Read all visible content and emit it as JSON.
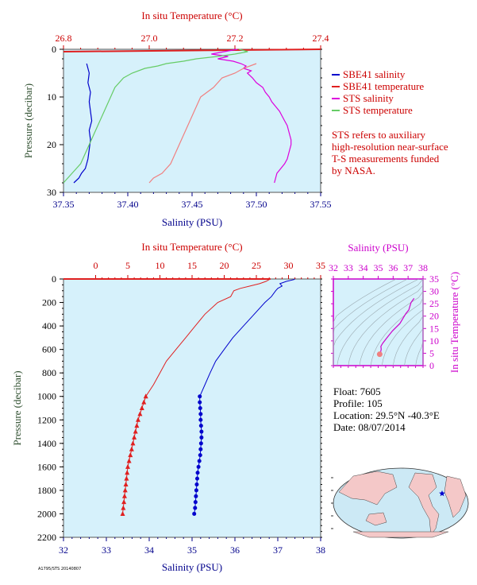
{
  "colors": {
    "plot_bg": "#d6f1fb",
    "salinity_sbe": "#0000cc",
    "temperature_sbe": "#e02020",
    "salinity_sts": "#dd00dd",
    "temperature_sts": "#66cc66",
    "temperature_sts_top": "#f08080",
    "frame_magenta": "#cc00cc"
  },
  "legend": {
    "items": [
      {
        "label": "SBE41 salinity",
        "color": "#0000cc"
      },
      {
        "label": "SBE41 temperature",
        "color": "#e02020"
      },
      {
        "label": "STS salinity",
        "color": "#dd00dd"
      },
      {
        "label": "STS temperature",
        "color": "#66cc66"
      }
    ],
    "note_lines": [
      "STS refers to auxiliary",
      "high-resolution near-surface",
      "T-S measurements funded",
      "by NASA."
    ]
  },
  "float_info": {
    "float": "Float:  7605",
    "profile": "Profile:  105",
    "location": "Location:  29.5°N  -40.3°E",
    "date": "Date:  08/07/2014"
  },
  "footer_code": "A1795/STS 20140807",
  "chart_data": [
    {
      "type": "line",
      "name": "top-near-surface",
      "title": "",
      "x_top_label": "In situ Temperature (°C)",
      "x_top_range": [
        26.8,
        27.4
      ],
      "x_top_ticks": [
        "26.8",
        "27.0",
        "27.2",
        "27.4"
      ],
      "x_bottom_label": "Salinity (PSU)",
      "x_bottom_range": [
        37.35,
        37.55
      ],
      "x_bottom_ticks": [
        "37.35",
        "37.40",
        "37.45",
        "37.50",
        "37.55"
      ],
      "ylabel": "Pressure (decibar)",
      "ylim": [
        30,
        0
      ],
      "y_ticks": [
        "0",
        "10",
        "20",
        "30"
      ],
      "grid": false,
      "series": [
        {
          "name": "SBE41 salinity",
          "axis": "bottom",
          "color": "#0000cc",
          "p": [
            3,
            5,
            7,
            9,
            11,
            13,
            15,
            17,
            19,
            21,
            23,
            24,
            25,
            26,
            27,
            28
          ],
          "x": [
            37.368,
            37.37,
            37.369,
            37.371,
            37.37,
            37.371,
            37.372,
            37.37,
            37.371,
            37.37,
            37.369,
            37.368,
            37.367,
            37.364,
            37.362,
            37.358
          ]
        },
        {
          "name": "SBE41 temperature",
          "axis": "top",
          "color": "#e02020",
          "p": [
            0,
            0.5
          ],
          "x": [
            27.4,
            26.8
          ]
        },
        {
          "name": "STS salinity",
          "axis": "bottom",
          "color": "#dd00dd",
          "p": [
            0,
            0.5,
            1,
            1.5,
            2,
            2.5,
            3,
            3.5,
            4,
            4.5,
            5,
            6,
            7,
            8,
            9,
            10,
            11,
            12,
            13,
            14,
            15,
            16,
            17,
            18,
            19,
            20,
            21,
            22,
            23,
            24,
            25,
            26,
            27,
            28
          ],
          "x": [
            37.485,
            37.475,
            37.465,
            37.478,
            37.47,
            37.482,
            37.488,
            37.492,
            37.49,
            37.496,
            37.493,
            37.497,
            37.5,
            37.505,
            37.507,
            37.51,
            37.512,
            37.515,
            37.518,
            37.52,
            37.522,
            37.524,
            37.525,
            37.526,
            37.527,
            37.527,
            37.526,
            37.525,
            37.524,
            37.522,
            37.519,
            37.516,
            37.515,
            37.514
          ]
        },
        {
          "name": "STS temperature",
          "axis": "top",
          "color": "#66cc66",
          "p": [
            0,
            0.5,
            1,
            1.5,
            2,
            2.5,
            3,
            3.5,
            4,
            5,
            6,
            8,
            10,
            12,
            14,
            16,
            18,
            20,
            22,
            24,
            25,
            26,
            27,
            28
          ],
          "x": [
            27.21,
            27.23,
            27.2,
            27.16,
            27.11,
            27.08,
            27.04,
            27.02,
            26.99,
            26.96,
            26.94,
            26.92,
            26.91,
            26.9,
            26.89,
            26.88,
            26.87,
            26.86,
            26.85,
            26.84,
            26.83,
            26.82,
            26.81,
            26.8
          ]
        },
        {
          "name": "STS temperature",
          "axis": "top",
          "color": "#f08080",
          "p": [
            3,
            4,
            5,
            6,
            8,
            10,
            12,
            14,
            16,
            18,
            20,
            22,
            24,
            25,
            26,
            27,
            28
          ],
          "x": [
            27.25,
            27.22,
            27.2,
            27.17,
            27.15,
            27.12,
            27.11,
            27.1,
            27.09,
            27.08,
            27.07,
            27.06,
            27.05,
            27.04,
            27.03,
            27.01,
            27.0
          ]
        }
      ]
    },
    {
      "type": "line",
      "name": "full-profile",
      "title": "",
      "x_top_label": "In situ Temperature (°C)",
      "x_top_range": [
        -5,
        35
      ],
      "x_top_ticks": [
        "0",
        "5",
        "10",
        "15",
        "20",
        "25",
        "30",
        "35"
      ],
      "x_bottom_label": "Salinity (PSU)",
      "x_bottom_range": [
        32,
        38
      ],
      "x_bottom_ticks": [
        "32",
        "33",
        "34",
        "35",
        "36",
        "37",
        "38"
      ],
      "ylabel": "Pressure (decibar)",
      "ylim": [
        2200,
        0
      ],
      "y_ticks": [
        "0",
        "200",
        "400",
        "600",
        "800",
        "1000",
        "1200",
        "1400",
        "1600",
        "1800",
        "2000",
        "2200"
      ],
      "grid": false,
      "series": [
        {
          "name": "SBE41 temperature",
          "axis": "top",
          "color": "#e02020",
          "p": [
            0,
            5,
            20,
            40,
            60,
            80,
            100,
            150,
            200,
            300,
            400,
            500,
            600,
            700,
            800,
            900,
            1000,
            1050,
            1100,
            1150,
            1200,
            1250,
            1300,
            1350,
            1400,
            1450,
            1500,
            1550,
            1600,
            1650,
            1700,
            1750,
            1800,
            1850,
            1900,
            1950,
            2000
          ],
          "x": [
            27.2,
            27.0,
            26.5,
            25.5,
            24.0,
            22.5,
            21.5,
            21.0,
            19.0,
            17.0,
            15.5,
            14.0,
            12.5,
            11.0,
            10.0,
            9.0,
            7.8,
            7.5,
            7.2,
            6.9,
            6.6,
            6.4,
            6.2,
            6.0,
            5.8,
            5.6,
            5.4,
            5.2,
            5.0,
            4.9,
            4.8,
            4.7,
            4.6,
            4.5,
            4.4,
            4.3,
            4.2
          ]
        },
        {
          "name": "SBE41 salinity",
          "axis": "bottom",
          "color": "#0000cc",
          "p": [
            0,
            5,
            20,
            40,
            60,
            80,
            100,
            150,
            200,
            300,
            400,
            500,
            600,
            700,
            800,
            900,
            1000,
            1050,
            1100,
            1150,
            1200,
            1250,
            1300,
            1350,
            1400,
            1450,
            1500,
            1550,
            1600,
            1650,
            1700,
            1750,
            1800,
            1850,
            1900,
            1950,
            2000
          ],
          "x": [
            37.4,
            37.38,
            37.2,
            37.05,
            37.1,
            37.0,
            36.95,
            36.85,
            36.7,
            36.45,
            36.2,
            35.95,
            35.75,
            35.55,
            35.42,
            35.3,
            35.18,
            35.18,
            35.19,
            35.2,
            35.2,
            35.21,
            35.22,
            35.22,
            35.21,
            35.2,
            35.19,
            35.17,
            35.15,
            35.13,
            35.12,
            35.11,
            35.1,
            35.09,
            35.08,
            35.07,
            35.05
          ]
        }
      ],
      "markers_from_pressure": 1000
    },
    {
      "type": "scatter",
      "name": "ts-diagram",
      "title": "",
      "x_top_label": "Salinity (PSU)",
      "x_top_range": [
        32,
        38
      ],
      "x_top_ticks": [
        "32",
        "33",
        "34",
        "35",
        "36",
        "37",
        "38"
      ],
      "y_right_label": "In situ Temperature (°C)",
      "ylim": [
        0,
        35
      ],
      "y_ticks": [
        "0",
        "5",
        "10",
        "15",
        "20",
        "25",
        "30",
        "35"
      ],
      "series": [
        {
          "name": "T-S",
          "color": "#cc00cc",
          "s": [
            37.4,
            37.2,
            37.05,
            36.85,
            36.45,
            35.95,
            35.55,
            35.3,
            35.18,
            35.2,
            35.15,
            35.05
          ],
          "t": [
            27.2,
            25.5,
            22.5,
            21.0,
            17.0,
            14.0,
            11.0,
            9.0,
            7.8,
            6.6,
            5.0,
            4.2
          ]
        }
      ]
    }
  ]
}
